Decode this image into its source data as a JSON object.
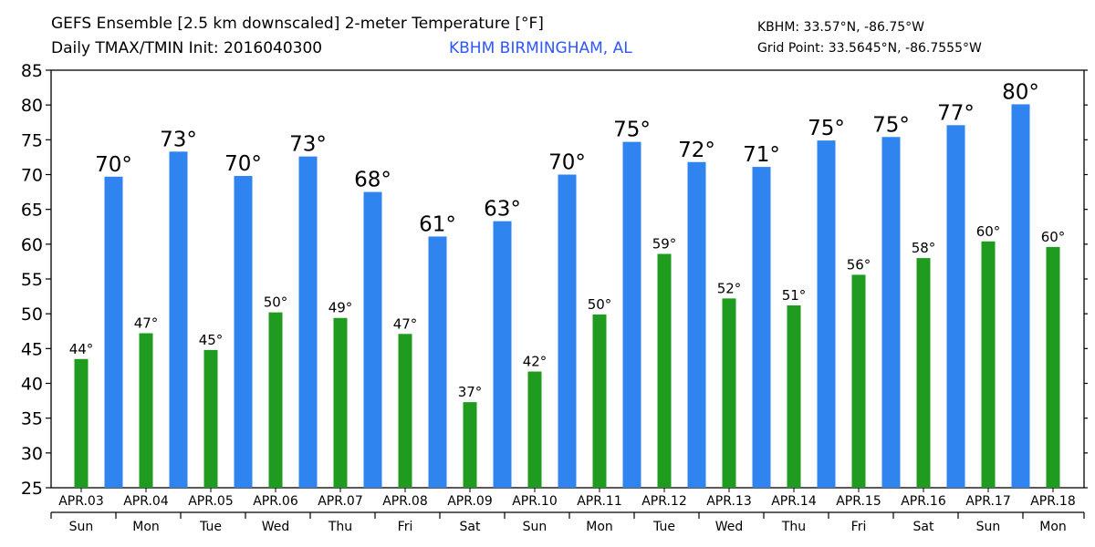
{
  "header": {
    "title": "GEFS Ensemble [2.5 km downscaled] 2-meter Temperature [°F]",
    "subtitle": "Daily TMAX/TMIN Init: 2016040300",
    "station_label": "KBHM BIRMINGHAM, AL",
    "station_coords": "KBHM: 33.57°N, -86.75°W",
    "grid_point": "Grid Point: 33.5645°N, -86.7555°W"
  },
  "colors": {
    "tmax": "#2f84f0",
    "tmin": "#1f9b1f"
  },
  "chart_data": {
    "type": "bar",
    "title": "GEFS Ensemble [2.5 km downscaled] 2-meter Temperature [°F]",
    "ylim": [
      25,
      85
    ],
    "yticks": [
      25,
      30,
      35,
      40,
      45,
      50,
      55,
      60,
      65,
      70,
      75,
      80,
      85
    ],
    "grid": false,
    "categories": [
      "APR.03",
      "APR.04",
      "APR.05",
      "APR.06",
      "APR.07",
      "APR.08",
      "APR.09",
      "APR.10",
      "APR.11",
      "APR.12",
      "APR.13",
      "APR.14",
      "APR.15",
      "APR.16",
      "APR.17",
      "APR.18"
    ],
    "weekdays": [
      "Sun",
      "Mon",
      "Tue",
      "Wed",
      "Thu",
      "Fri",
      "Sat",
      "Sun",
      "Mon",
      "Tue",
      "Wed",
      "Thu",
      "Fri",
      "Sat",
      "Sun",
      "Mon"
    ],
    "tmin": {
      "values": [
        43.5,
        47.2,
        44.8,
        50.2,
        49.4,
        47.1,
        37.3,
        41.7,
        49.9,
        58.6,
        52.2,
        51.2,
        55.6,
        58.0,
        60.4,
        59.6
      ],
      "labels": [
        "44°",
        "47°",
        "45°",
        "50°",
        "49°",
        "47°",
        "37°",
        "42°",
        "50°",
        "59°",
        "52°",
        "51°",
        "56°",
        "58°",
        "60°",
        "60°"
      ]
    },
    "tmax": {
      "values": [
        69.7,
        73.3,
        69.8,
        72.6,
        67.5,
        61.1,
        63.3,
        70.0,
        74.7,
        71.8,
        71.1,
        74.9,
        75.4,
        77.1,
        80.1
      ],
      "labels": [
        "70°",
        "73°",
        "70°",
        "73°",
        "68°",
        "61°",
        "63°",
        "70°",
        "75°",
        "72°",
        "71°",
        "75°",
        "75°",
        "77°",
        "80°"
      ]
    }
  }
}
